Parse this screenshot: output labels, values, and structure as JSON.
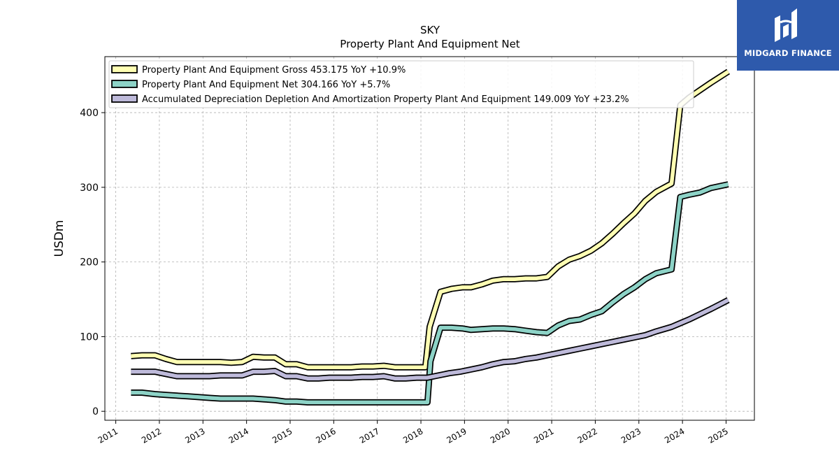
{
  "chart_data": {
    "type": "line",
    "title": "SKY",
    "subtitle": "Property Plant And Equipment Net",
    "xlabel": "",
    "ylabel": "USDm",
    "xlim": [
      2010.75,
      2025.65
    ],
    "ylim": [
      -12,
      475
    ],
    "x_ticks": [
      "2011",
      "2012",
      "2013",
      "2014",
      "2015",
      "2016",
      "2017",
      "2018",
      "2019",
      "2020",
      "2021",
      "2022",
      "2023",
      "2024",
      "2025"
    ],
    "y_ticks": [
      0,
      100,
      200,
      300,
      400
    ],
    "grid": true,
    "legend_position": "top-left",
    "series": [
      {
        "name": "Property Plant And Equipment Gross",
        "legend": "Property Plant And Equipment Gross  453.175 YoY +10.9%",
        "color": "#ffffb3",
        "points": [
          [
            2011.35,
            74
          ],
          [
            2011.6,
            75
          ],
          [
            2011.9,
            75
          ],
          [
            2012.15,
            70
          ],
          [
            2012.4,
            66
          ],
          [
            2012.65,
            66
          ],
          [
            2012.9,
            66
          ],
          [
            2013.15,
            66
          ],
          [
            2013.4,
            66
          ],
          [
            2013.65,
            65
          ],
          [
            2013.9,
            66
          ],
          [
            2014.15,
            73
          ],
          [
            2014.4,
            72
          ],
          [
            2014.65,
            72
          ],
          [
            2014.9,
            63
          ],
          [
            2015.15,
            63
          ],
          [
            2015.4,
            59
          ],
          [
            2015.65,
            59
          ],
          [
            2015.9,
            59
          ],
          [
            2016.15,
            59
          ],
          [
            2016.4,
            59
          ],
          [
            2016.65,
            60
          ],
          [
            2016.9,
            60
          ],
          [
            2017.15,
            61
          ],
          [
            2017.4,
            59
          ],
          [
            2017.65,
            59
          ],
          [
            2017.9,
            59
          ],
          [
            2018.1,
            59
          ],
          [
            2018.2,
            113
          ],
          [
            2018.45,
            160
          ],
          [
            2018.7,
            164
          ],
          [
            2018.95,
            166
          ],
          [
            2019.15,
            166
          ],
          [
            2019.4,
            170
          ],
          [
            2019.65,
            175
          ],
          [
            2019.9,
            177
          ],
          [
            2020.15,
            177
          ],
          [
            2020.4,
            178
          ],
          [
            2020.65,
            178
          ],
          [
            2020.9,
            180
          ],
          [
            2021.15,
            194
          ],
          [
            2021.4,
            203
          ],
          [
            2021.65,
            208
          ],
          [
            2021.9,
            215
          ],
          [
            2022.15,
            225
          ],
          [
            2022.4,
            238
          ],
          [
            2022.65,
            252
          ],
          [
            2022.9,
            265
          ],
          [
            2023.15,
            282
          ],
          [
            2023.4,
            294
          ],
          [
            2023.75,
            305
          ],
          [
            2023.95,
            410
          ],
          [
            2024.15,
            420
          ],
          [
            2024.4,
            430
          ],
          [
            2024.65,
            440
          ],
          [
            2025.05,
            455
          ]
        ]
      },
      {
        "name": "Property Plant And Equipment Net",
        "legend": "Property Plant And Equipment Net  304.166 YoY +5.7%",
        "color": "#8dd3c7",
        "points": [
          [
            2011.35,
            25
          ],
          [
            2011.6,
            25
          ],
          [
            2011.9,
            23
          ],
          [
            2012.15,
            22
          ],
          [
            2012.4,
            21
          ],
          [
            2012.65,
            20
          ],
          [
            2012.9,
            19
          ],
          [
            2013.15,
            18
          ],
          [
            2013.4,
            17
          ],
          [
            2013.65,
            17
          ],
          [
            2013.9,
            17
          ],
          [
            2014.15,
            17
          ],
          [
            2014.4,
            16
          ],
          [
            2014.65,
            15
          ],
          [
            2014.9,
            13
          ],
          [
            2015.15,
            13
          ],
          [
            2015.4,
            12
          ],
          [
            2015.65,
            12
          ],
          [
            2015.9,
            12
          ],
          [
            2016.15,
            12
          ],
          [
            2016.4,
            12
          ],
          [
            2016.65,
            12
          ],
          [
            2016.9,
            12
          ],
          [
            2017.15,
            12
          ],
          [
            2017.4,
            12
          ],
          [
            2017.65,
            12
          ],
          [
            2017.9,
            12
          ],
          [
            2018.15,
            12
          ],
          [
            2018.22,
            67
          ],
          [
            2018.45,
            112
          ],
          [
            2018.7,
            112
          ],
          [
            2018.95,
            111
          ],
          [
            2019.15,
            109
          ],
          [
            2019.4,
            110
          ],
          [
            2019.65,
            111
          ],
          [
            2019.9,
            111
          ],
          [
            2020.15,
            110
          ],
          [
            2020.4,
            108
          ],
          [
            2020.65,
            106
          ],
          [
            2020.9,
            105
          ],
          [
            2021.15,
            115
          ],
          [
            2021.4,
            121
          ],
          [
            2021.65,
            123
          ],
          [
            2021.9,
            129
          ],
          [
            2022.15,
            134
          ],
          [
            2022.4,
            146
          ],
          [
            2022.65,
            157
          ],
          [
            2022.9,
            166
          ],
          [
            2023.15,
            177
          ],
          [
            2023.4,
            185
          ],
          [
            2023.75,
            190
          ],
          [
            2023.95,
            287
          ],
          [
            2024.15,
            290
          ],
          [
            2024.4,
            293
          ],
          [
            2024.65,
            299
          ],
          [
            2025.05,
            304
          ]
        ]
      },
      {
        "name": "Accumulated Depreciation Depletion And Amortization Property Plant And Equipment",
        "legend": "Accumulated Depreciation Depletion And Amortization Property Plant And Equipment  149.009 YoY +23.2%",
        "color": "#bebada",
        "points": [
          [
            2011.35,
            53
          ],
          [
            2011.6,
            53
          ],
          [
            2011.9,
            53
          ],
          [
            2012.15,
            50
          ],
          [
            2012.4,
            47
          ],
          [
            2012.65,
            47
          ],
          [
            2012.9,
            47
          ],
          [
            2013.15,
            47
          ],
          [
            2013.4,
            48
          ],
          [
            2013.65,
            48
          ],
          [
            2013.9,
            48
          ],
          [
            2014.15,
            53
          ],
          [
            2014.4,
            53
          ],
          [
            2014.65,
            54
          ],
          [
            2014.9,
            47
          ],
          [
            2015.15,
            47
          ],
          [
            2015.4,
            44
          ],
          [
            2015.65,
            44
          ],
          [
            2015.9,
            45
          ],
          [
            2016.15,
            45
          ],
          [
            2016.4,
            45
          ],
          [
            2016.65,
            46
          ],
          [
            2016.9,
            46
          ],
          [
            2017.15,
            47
          ],
          [
            2017.4,
            44
          ],
          [
            2017.65,
            44
          ],
          [
            2017.9,
            45
          ],
          [
            2018.15,
            45
          ],
          [
            2018.4,
            48
          ],
          [
            2018.65,
            51
          ],
          [
            2018.9,
            53
          ],
          [
            2019.15,
            56
          ],
          [
            2019.4,
            59
          ],
          [
            2019.65,
            63
          ],
          [
            2019.9,
            66
          ],
          [
            2020.15,
            67
          ],
          [
            2020.4,
            70
          ],
          [
            2020.65,
            72
          ],
          [
            2020.9,
            75
          ],
          [
            2021.15,
            78
          ],
          [
            2021.4,
            81
          ],
          [
            2021.65,
            84
          ],
          [
            2021.9,
            87
          ],
          [
            2022.15,
            90
          ],
          [
            2022.4,
            93
          ],
          [
            2022.65,
            96
          ],
          [
            2022.9,
            99
          ],
          [
            2023.15,
            102
          ],
          [
            2023.4,
            107
          ],
          [
            2023.75,
            113
          ],
          [
            2023.95,
            118
          ],
          [
            2024.15,
            123
          ],
          [
            2024.4,
            130
          ],
          [
            2024.65,
            137
          ],
          [
            2025.05,
            149
          ]
        ]
      }
    ]
  },
  "logo": {
    "text": "MIDGARD FINANCE",
    "background": "#2e5aac"
  }
}
